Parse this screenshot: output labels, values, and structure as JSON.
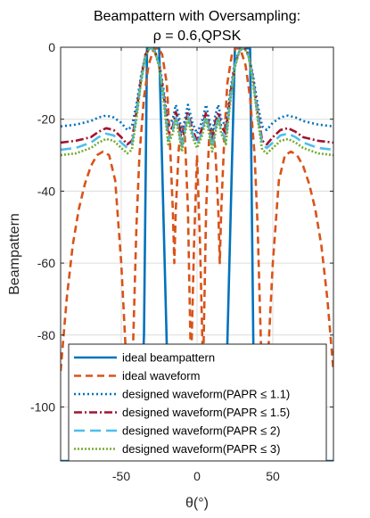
{
  "chart_data": {
    "type": "line",
    "title_line1": "Beampattern with Oversampling:",
    "title_line2": "ρ = 0.6,QPSK",
    "xlabel": "θ(°)",
    "ylabel": "Beampattern",
    "xlim": [
      -90,
      90
    ],
    "ylim": [
      -115,
      0
    ],
    "xticks": [
      -50,
      0,
      50
    ],
    "xtick_labels": [
      "-50",
      "0",
      "50"
    ],
    "yticks": [
      0,
      -20,
      -40,
      -60,
      -80,
      -100
    ],
    "ytick_labels": [
      "0",
      "-20",
      "-40",
      "-60",
      "-80",
      "-100"
    ],
    "grid": true,
    "legend_position": "bottom-center",
    "series": [
      {
        "name": "ideal beampattern",
        "color": "#0072BD",
        "dash": "solid",
        "x": [
          -90,
          -60,
          -45,
          -42,
          -38,
          -35,
          -33,
          -25,
          -18,
          -15,
          -12,
          -5,
          0,
          5,
          12,
          15,
          18,
          25,
          33,
          35,
          38,
          42,
          45,
          60,
          90
        ],
        "y": [
          -115,
          -115,
          -115,
          -115,
          -115,
          -80,
          -0.3,
          -0.3,
          -115,
          -115,
          -115,
          -115,
          -115,
          -115,
          -115,
          -115,
          -115,
          -0.3,
          -0.3,
          -0.3,
          -115,
          -115,
          -115,
          -115,
          -115
        ]
      },
      {
        "name": "ideal waveform",
        "color": "#D95319",
        "dash": "8,5",
        "x": [
          -90,
          -86,
          -82,
          -78,
          -74,
          -70,
          -66,
          -62,
          -58,
          -54,
          -50,
          -46,
          -44,
          -42,
          -40,
          -38,
          -35,
          -32,
          -29,
          -26,
          -23,
          -20,
          -18,
          -16,
          -15,
          -14,
          -12,
          -10,
          -8,
          -6,
          -4,
          -2,
          0,
          2,
          4,
          6,
          8,
          10,
          12,
          14,
          15,
          16,
          18,
          20,
          23,
          26,
          29,
          32,
          35,
          38,
          40,
          42,
          44,
          46,
          50,
          54,
          58,
          62,
          66,
          70,
          74,
          78,
          82,
          86,
          90
        ],
        "y": [
          -90,
          -70,
          -55,
          -45,
          -38,
          -33,
          -30,
          -29,
          -30,
          -37,
          -60,
          -93,
          -110,
          -80,
          -50,
          -30,
          -14,
          -5,
          -1,
          0,
          -2,
          -10,
          -25,
          -45,
          -60,
          -45,
          -28,
          -22,
          -25,
          -45,
          -90,
          -55,
          -30,
          -55,
          -90,
          -45,
          -25,
          -22,
          -28,
          -45,
          -60,
          -45,
          -25,
          -10,
          -2,
          0,
          -1,
          -5,
          -14,
          -30,
          -50,
          -80,
          -110,
          -93,
          -60,
          -37,
          -30,
          -29,
          -30,
          -33,
          -38,
          -45,
          -55,
          -70,
          -90
        ]
      },
      {
        "name": "designed waveform(PAPR ≤ 1.1)",
        "color": "#0072BD",
        "dash": "2,3",
        "x": [
          -90,
          -80,
          -70,
          -65,
          -60,
          -55,
          -50,
          -46,
          -43,
          -40,
          -37,
          -34,
          -31,
          -28,
          -25,
          -22,
          -19,
          -16,
          -14,
          -12,
          -10,
          -8,
          -6,
          -3,
          0,
          3,
          6,
          8,
          10,
          12,
          14,
          16,
          19,
          22,
          25,
          28,
          31,
          34,
          37,
          40,
          43,
          46,
          50,
          55,
          60,
          65,
          70,
          80,
          90
        ],
        "y": [
          -22,
          -21.5,
          -20.5,
          -19.5,
          -19,
          -19.5,
          -21,
          -23,
          -22,
          -16,
          -8,
          -2,
          0,
          -1,
          -4,
          -12,
          -22,
          -20,
          -16,
          -19,
          -24,
          -20,
          -16,
          -21,
          -24,
          -21,
          -16,
          -20,
          -24,
          -19,
          -16,
          -20,
          -22,
          -12,
          -4,
          -1,
          0,
          -2,
          -8,
          -16,
          -22,
          -23,
          -21,
          -19.5,
          -19,
          -19.5,
          -20.5,
          -21.5,
          -22
        ]
      },
      {
        "name": "designed waveform(PAPR ≤ 1.5)",
        "color": "#A2142F",
        "dash": "9,3,2,3",
        "x": [
          -90,
          -80,
          -70,
          -65,
          -60,
          -55,
          -50,
          -46,
          -43,
          -40,
          -37,
          -34,
          -31,
          -28,
          -25,
          -22,
          -19,
          -16,
          -14,
          -12,
          -10,
          -8,
          -6,
          -3,
          0,
          3,
          6,
          8,
          10,
          12,
          14,
          16,
          19,
          22,
          25,
          28,
          31,
          34,
          37,
          40,
          43,
          46,
          50,
          55,
          60,
          65,
          70,
          80,
          90
        ],
        "y": [
          -26.5,
          -26,
          -25,
          -23.5,
          -22.5,
          -23,
          -25,
          -27,
          -26,
          -18,
          -9,
          -2,
          0,
          -1,
          -5,
          -13,
          -24,
          -22,
          -18,
          -21,
          -27,
          -22,
          -18,
          -23,
          -26,
          -23,
          -18,
          -22,
          -27,
          -21,
          -18,
          -22,
          -24,
          -13,
          -5,
          -1,
          0,
          -2,
          -9,
          -18,
          -26,
          -27,
          -25,
          -23,
          -22.5,
          -23.5,
          -25,
          -26,
          -26.5
        ]
      },
      {
        "name": "designed waveform(PAPR ≤ 2)",
        "color": "#4DBEEE",
        "dash": "12,6",
        "x": [
          -90,
          -80,
          -70,
          -65,
          -60,
          -55,
          -50,
          -46,
          -43,
          -40,
          -37,
          -34,
          -31,
          -28,
          -25,
          -22,
          -19,
          -16,
          -14,
          -12,
          -10,
          -8,
          -6,
          -3,
          0,
          3,
          6,
          8,
          10,
          12,
          14,
          16,
          19,
          22,
          25,
          28,
          31,
          34,
          37,
          40,
          43,
          46,
          50,
          55,
          60,
          65,
          70,
          80,
          90
        ],
        "y": [
          -28.5,
          -28,
          -26.5,
          -25,
          -24,
          -24.5,
          -26.5,
          -28,
          -27,
          -19,
          -9.5,
          -2.5,
          0,
          -1,
          -5,
          -14,
          -26,
          -23,
          -19,
          -23,
          -28,
          -23,
          -19,
          -24,
          -27,
          -24,
          -19,
          -23,
          -28,
          -23,
          -19,
          -23,
          -26,
          -14,
          -5,
          -1,
          0,
          -2.5,
          -9.5,
          -19,
          -27,
          -28,
          -26.5,
          -24.5,
          -24,
          -25,
          -26.5,
          -28,
          -28.5
        ]
      },
      {
        "name": "designed waveform(PAPR ≤ 3)",
        "color": "#77AC30",
        "dash": "2,2",
        "x": [
          -90,
          -80,
          -70,
          -65,
          -60,
          -55,
          -50,
          -46,
          -43,
          -40,
          -37,
          -34,
          -31,
          -28,
          -25,
          -22,
          -19,
          -16,
          -14,
          -12,
          -10,
          -8,
          -6,
          -3,
          0,
          3,
          6,
          8,
          10,
          12,
          14,
          16,
          19,
          22,
          25,
          28,
          31,
          34,
          37,
          40,
          43,
          46,
          50,
          55,
          60,
          65,
          70,
          80,
          90
        ],
        "y": [
          -30,
          -29.5,
          -28,
          -26.5,
          -25.5,
          -26,
          -28,
          -29.5,
          -28.5,
          -20,
          -10,
          -2.5,
          0,
          -1,
          -5.5,
          -15,
          -27,
          -24,
          -20,
          -24,
          -29,
          -24,
          -20,
          -25,
          -28,
          -25,
          -20,
          -24,
          -29,
          -24,
          -20,
          -24,
          -27,
          -15,
          -5.5,
          -1,
          0,
          -2.5,
          -10,
          -20,
          -28.5,
          -29.5,
          -28,
          -26,
          -25.5,
          -26.5,
          -28,
          -29.5,
          -30
        ]
      }
    ]
  }
}
